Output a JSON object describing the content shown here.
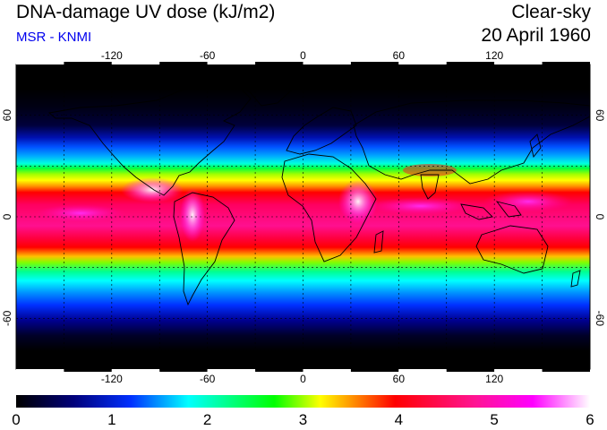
{
  "header": {
    "title": "DNA-damage UV dose (kJ/m2)",
    "source": "MSR - KNMI",
    "condition": "Clear-sky",
    "date": "20 April 1960"
  },
  "map": {
    "lon_ticks": [
      -120,
      -60,
      0,
      60,
      120
    ],
    "lat_ticks": [
      60,
      0,
      -60
    ],
    "lat_tick_labels_left": [
      "60",
      "0",
      "-60"
    ],
    "lat_tick_labels_right": [
      "60",
      "0",
      "-60"
    ],
    "lon_tick_labels": [
      "-120",
      "-60",
      "0",
      "60",
      "120"
    ]
  },
  "colorbar": {
    "min": 0,
    "max": 6,
    "tick_labels": [
      "0",
      "1",
      "2",
      "3",
      "4",
      "5",
      "6"
    ],
    "colors": [
      "#000000",
      "#00007a",
      "#0000ff",
      "#00ffff",
      "#00ff00",
      "#ffff00",
      "#ff0000",
      "#ff1493",
      "#ff00ff",
      "#ffffff"
    ]
  }
}
